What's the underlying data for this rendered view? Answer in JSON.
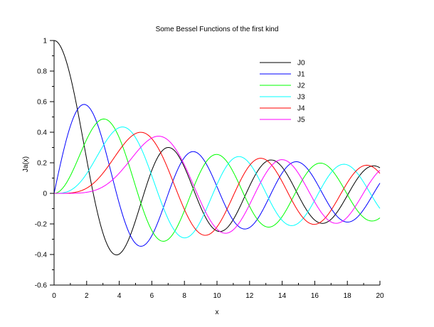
{
  "chart_data": {
    "type": "line",
    "title": "Some Bessel Functions of the first kind",
    "xlabel": "x",
    "ylabel": "Ja(x)",
    "xlim": [
      0,
      20
    ],
    "ylim": [
      -0.6,
      1
    ],
    "xticks": [
      0,
      2,
      4,
      6,
      8,
      10,
      12,
      14,
      16,
      18,
      20
    ],
    "xtick_labels": [
      "0",
      "2",
      "4",
      "6",
      "8",
      "10",
      "12",
      "14",
      "16",
      "18",
      "20"
    ],
    "yticks": [
      -0.6,
      -0.4,
      -0.2,
      0,
      0.2,
      0.4,
      0.6,
      0.8,
      1
    ],
    "ytick_labels": [
      "-0.6",
      "-0.4",
      "-0.2",
      "0",
      "0.2",
      "0.4",
      "0.6",
      "0.8",
      "1"
    ],
    "grid": false,
    "legend_position": "upper-right",
    "series": [
      {
        "name": "J0",
        "order": 0,
        "color": "#000000",
        "x": [
          0,
          2,
          2.405,
          3.832,
          4,
          5.52,
          6,
          7.016,
          8,
          8.654,
          10,
          10.17,
          11.79,
          12,
          13.32,
          14,
          14.93,
          16,
          16.47,
          18,
          18.07,
          19.62,
          20
        ],
        "values": [
          1,
          0.224,
          0,
          -0.403,
          -0.397,
          0,
          0.151,
          0.3,
          0.172,
          0,
          -0.246,
          -0.25,
          0,
          0.048,
          0.218,
          0.171,
          0,
          -0.175,
          -0.202,
          -0.014,
          0,
          0.18,
          0.167
        ]
      },
      {
        "name": "J1",
        "order": 1,
        "color": "#0000ff",
        "x": [
          0,
          1.841,
          2,
          3.832,
          4,
          5.331,
          6,
          7.016,
          8,
          8.536,
          10,
          10.17,
          11.71,
          12,
          13.32,
          14,
          14.86,
          16,
          16.47,
          18,
          18.02,
          19.62,
          20
        ],
        "values": [
          0,
          0.582,
          0.577,
          0,
          -0.066,
          -0.346,
          -0.277,
          0,
          0.235,
          0.273,
          0.043,
          0,
          -0.232,
          -0.223,
          0,
          0.133,
          0.207,
          0.09,
          0,
          -0.188,
          -0.188,
          0,
          0.067
        ]
      },
      {
        "name": "J2",
        "order": 2,
        "color": "#00ff00",
        "x": [
          0,
          2,
          3.054,
          4,
          5.136,
          6,
          6.706,
          8,
          8.417,
          9.969,
          10,
          11.62,
          12,
          13.24,
          14,
          14.8,
          16,
          16.22,
          18,
          19.0,
          20
        ],
        "values": [
          0,
          0.353,
          0.486,
          0.364,
          0,
          -0.243,
          -0.314,
          -0.113,
          0,
          0.255,
          0.255,
          0,
          -0.085,
          -0.22,
          -0.152,
          0,
          0.186,
          0.197,
          -0.008,
          -0.13,
          -0.16
        ]
      },
      {
        "name": "J3",
        "order": 3,
        "color": "#00ffff",
        "x": [
          0,
          2,
          4,
          4.201,
          6,
          6.38,
          8,
          8.015,
          9.761,
          10,
          11.35,
          12,
          13.02,
          14,
          14.58,
          16,
          16.22,
          17.8,
          18,
          20
        ],
        "values": [
          0,
          0.129,
          0.43,
          0.434,
          0.115,
          0,
          -0.291,
          -0.291,
          0,
          0.058,
          0.243,
          0.195,
          0,
          -0.177,
          -0.215,
          -0.044,
          0,
          0.186,
          0.186,
          -0.099
        ]
      },
      {
        "name": "J4",
        "order": 4,
        "color": "#ff0000",
        "x": [
          0,
          2,
          4,
          5.318,
          6,
          7.588,
          8,
          9.282,
          10,
          11.06,
          12,
          12.68,
          14,
          14.37,
          15.95,
          16,
          17.54,
          18,
          19.06,
          20
        ],
        "values": [
          0,
          0.034,
          0.281,
          0.4,
          0.358,
          0,
          -0.105,
          -0.271,
          -0.22,
          0,
          0.182,
          0.232,
          0.076,
          0,
          -0.202,
          -0.202,
          0,
          0.07,
          0.182,
          0.181
        ]
      },
      {
        "name": "J5",
        "order": 5,
        "color": "#ff00ff",
        "x": [
          0,
          2,
          4,
          6,
          6.416,
          8,
          8.772,
          10,
          10.52,
          12,
          12.34,
          13.99,
          14,
          15.7,
          16,
          17.26,
          18,
          18.98,
          20
        ],
        "values": [
          0,
          0.007,
          0.132,
          0.362,
          0.374,
          0.186,
          0,
          -0.234,
          -0.262,
          -0.073,
          0,
          0.22,
          0.22,
          0,
          -0.057,
          -0.209,
          -0.155,
          0,
          0.151
        ]
      }
    ]
  },
  "legend": {
    "entries": [
      {
        "label": "J0",
        "color": "#000000"
      },
      {
        "label": "J1",
        "color": "#0000ff"
      },
      {
        "label": "J2",
        "color": "#00ff00"
      },
      {
        "label": "J3",
        "color": "#00ffff"
      },
      {
        "label": "J4",
        "color": "#ff0000"
      },
      {
        "label": "J5",
        "color": "#ff00ff"
      }
    ]
  }
}
